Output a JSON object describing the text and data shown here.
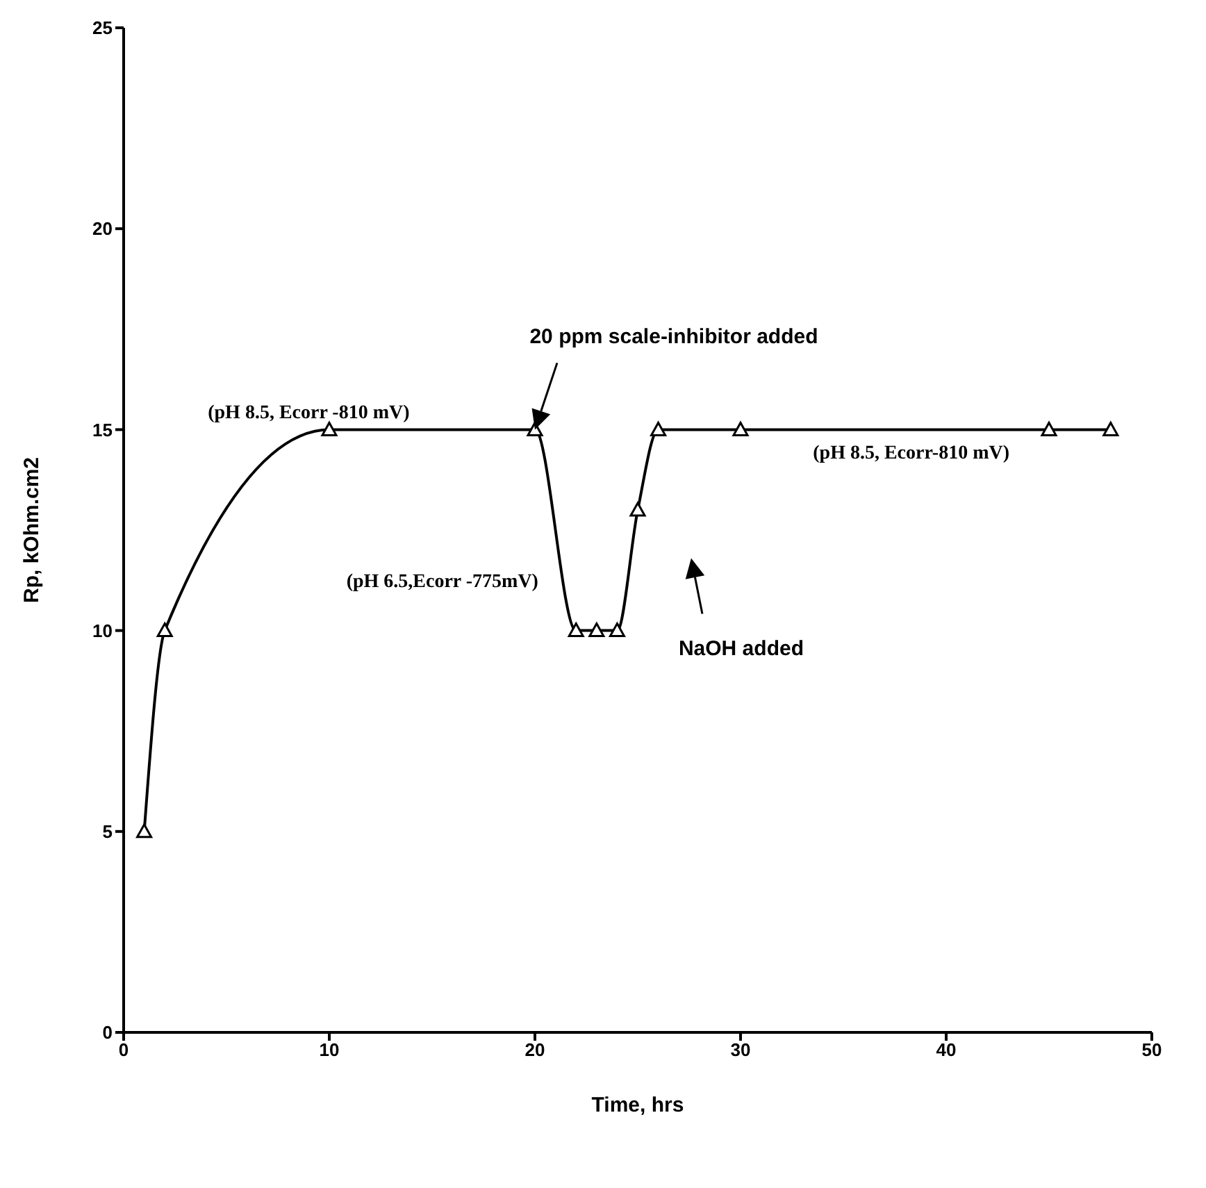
{
  "chart_data": {
    "type": "line",
    "xlabel": "Time, hrs",
    "ylabel": "Rp, kOhm.cm2",
    "x": [
      1,
      2,
      10,
      20,
      22,
      23,
      24,
      25,
      26,
      30,
      45,
      48
    ],
    "series": [
      {
        "color": "#000000",
        "values": [
          5,
          10,
          15,
          15,
          10,
          10,
          10,
          13,
          15,
          15,
          15,
          15
        ]
      }
    ],
    "xlim": [
      0,
      50
    ],
    "xticks": [
      0,
      10,
      20,
      30,
      40,
      50
    ],
    "ylim": [
      0,
      25
    ],
    "yticks": [
      0,
      5,
      10,
      15,
      20,
      25
    ],
    "marker": "triangle",
    "line_style": "solid",
    "grid": false,
    "legend": false,
    "annotations": [
      "20 ppm scale-inhibitor added",
      "NaOH added",
      "(pH 8.5, Ecorr -810 mV)",
      "(pH 8.5, Ecorr-810 mV)",
      "(pH 6.5,Ecorr -775mV)"
    ]
  }
}
